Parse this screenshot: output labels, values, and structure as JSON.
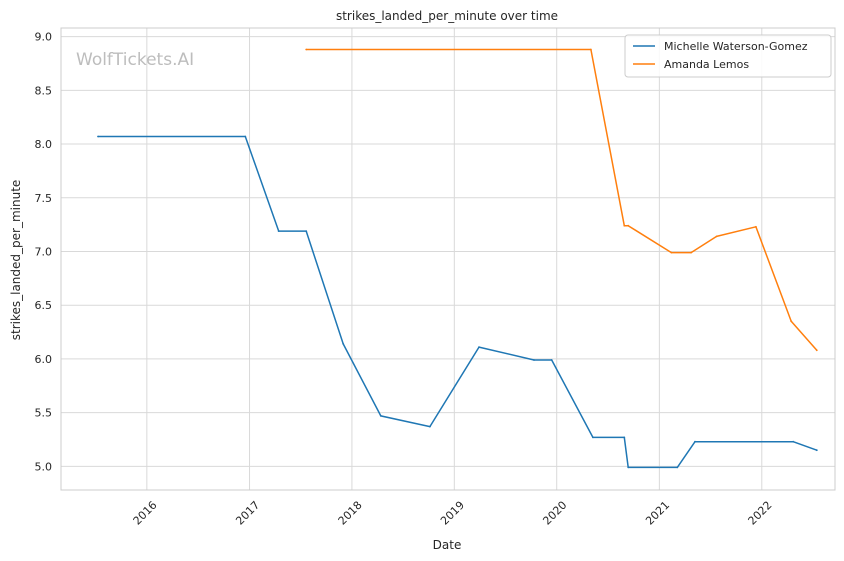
{
  "chart_data": {
    "type": "line",
    "title": "strikes_landed_per_minute over time",
    "xlabel": "Date",
    "ylabel": "strikes_landed_per_minute",
    "watermark": "WolfTickets.AI",
    "x_ticks": [
      "2016",
      "2017",
      "2018",
      "2019",
      "2020",
      "2021",
      "2022"
    ],
    "y_ticks": [
      "5.0",
      "5.5",
      "6.0",
      "6.5",
      "7.0",
      "7.5",
      "8.0",
      "8.5",
      "9.0"
    ],
    "xlim": [
      "2015-03-01",
      "2022-09-19"
    ],
    "ylim": [
      4.78,
      9.08
    ],
    "grid": true,
    "legend_position": "top-right",
    "series": [
      {
        "name": "Michelle Waterson-Gomez",
        "color": "#1f77b4",
        "points": [
          [
            "2015-07-11",
            8.07
          ],
          [
            "2016-12-17",
            8.07
          ],
          [
            "2017-04-15",
            7.19
          ],
          [
            "2017-07-22",
            7.19
          ],
          [
            "2017-12-01",
            6.14
          ],
          [
            "2018-04-14",
            5.47
          ],
          [
            "2018-10-06",
            5.37
          ],
          [
            "2019-03-30",
            6.11
          ],
          [
            "2019-10-12",
            5.99
          ],
          [
            "2019-12-14",
            5.99
          ],
          [
            "2020-05-09",
            5.27
          ],
          [
            "2020-08-29",
            5.27
          ],
          [
            "2020-09-12",
            4.99
          ],
          [
            "2021-03-06",
            4.99
          ],
          [
            "2021-05-08",
            5.23
          ],
          [
            "2022-04-23",
            5.23
          ],
          [
            "2022-07-16",
            5.15
          ]
        ]
      },
      {
        "name": "Amanda Lemos",
        "color": "#ff7f0e",
        "points": [
          [
            "2017-07-22",
            8.88
          ],
          [
            "2020-05-02",
            8.88
          ],
          [
            "2020-08-29",
            7.24
          ],
          [
            "2020-09-12",
            7.24
          ],
          [
            "2021-02-13",
            6.99
          ],
          [
            "2021-04-24",
            6.99
          ],
          [
            "2021-07-24",
            7.14
          ],
          [
            "2021-12-11",
            7.23
          ],
          [
            "2022-04-16",
            6.35
          ],
          [
            "2022-07-16",
            6.08
          ]
        ]
      }
    ]
  }
}
